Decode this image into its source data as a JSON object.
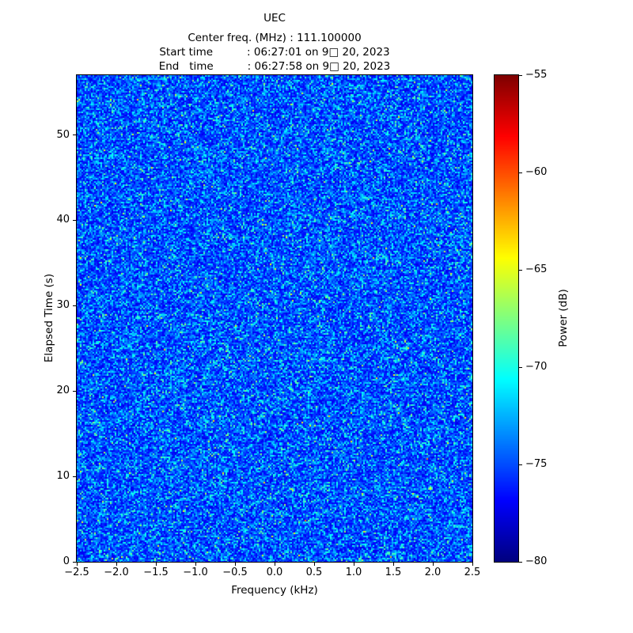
{
  "header": {
    "title": "UEC",
    "center_freq_line": "Center freq. (MHz) : 111.100000",
    "start_time_line": "Start time          : 06:27:01 on 9□ 20, 2023",
    "end_time_line": "End   time          : 06:27:58 on 9□ 20, 2023"
  },
  "chart_data": {
    "type": "heatmap",
    "title": "UEC",
    "center_freq_mhz": "111.100000",
    "start_time": "06:27:01 on 9□ 20, 2023",
    "end_time": "06:27:58 on 9□ 20, 2023",
    "xlabel": "Frequency (kHz)",
    "ylabel": "Elapsed Time (s)",
    "xlim": [
      -2.5,
      2.5
    ],
    "ylim": [
      0,
      57
    ],
    "xticks": [
      -2.5,
      -2.0,
      -1.5,
      -1.0,
      -0.5,
      0.0,
      0.5,
      1.0,
      1.5,
      2.0,
      2.5
    ],
    "xtick_labels": [
      "−2.5",
      "−2.0",
      "−1.5",
      "−1.0",
      "−0.5",
      "0.0",
      "0.5",
      "1.0",
      "1.5",
      "2.0",
      "2.5"
    ],
    "yticks": [
      0,
      10,
      20,
      30,
      40,
      50
    ],
    "ytick_labels": [
      "0",
      "10",
      "20",
      "30",
      "40",
      "50"
    ],
    "grid": false,
    "colorbar": {
      "label": "Power (dB)",
      "colormap": "jet",
      "vmin": -80,
      "vmax": -55,
      "ticks": [
        -55,
        -60,
        -65,
        -70,
        -75,
        -80
      ],
      "tick_labels": [
        "−55",
        "−60",
        "−65",
        "−70",
        "−75",
        "−80"
      ]
    },
    "data_description": "Spectrogram of wideband random noise spanning −2.5 to 2.5 kHz over 0–57 s; power fluctuates randomly, mostly between −80 and −65 dB (blue/cyan speckle) with rare brighter speckles",
    "noise_model": {
      "seed": 1234,
      "cols": 250,
      "rows": 308,
      "t_base": 0.1,
      "t_spread": 0.15
    }
  }
}
